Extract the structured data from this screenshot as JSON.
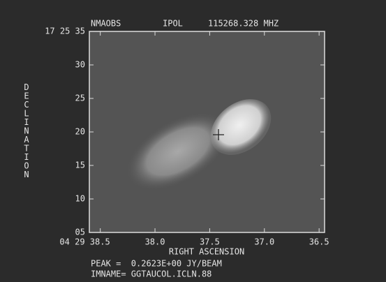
{
  "chart_data": {
    "type": "image",
    "header": {
      "observatory": "NMAOBS",
      "polarization": "IPOL",
      "frequency": "115268.328 MHZ"
    },
    "xlabel": "RIGHT ASCENSION",
    "ylabel": "DECLINATION",
    "xlim": [
      38.6,
      36.45
    ],
    "xticks": [
      {
        "value": 38.5,
        "label": "04 29 38.5"
      },
      {
        "value": 38,
        "label": "38.0"
      },
      37.5,
      {
        "value": 37,
        "label": "37.0"
      },
      36.5
    ],
    "ylim": [
      5,
      35
    ],
    "yticks": [
      {
        "value": 5,
        "label": "05"
      },
      10,
      15,
      20,
      25,
      30,
      {
        "value": 35,
        "label": "17 25 35"
      }
    ],
    "footer": {
      "peak": "PEAK =  0.2623E+00 JY/BEAM",
      "imname": "IMNAME= GGTAUCOL.ICLN.88"
    }
  }
}
